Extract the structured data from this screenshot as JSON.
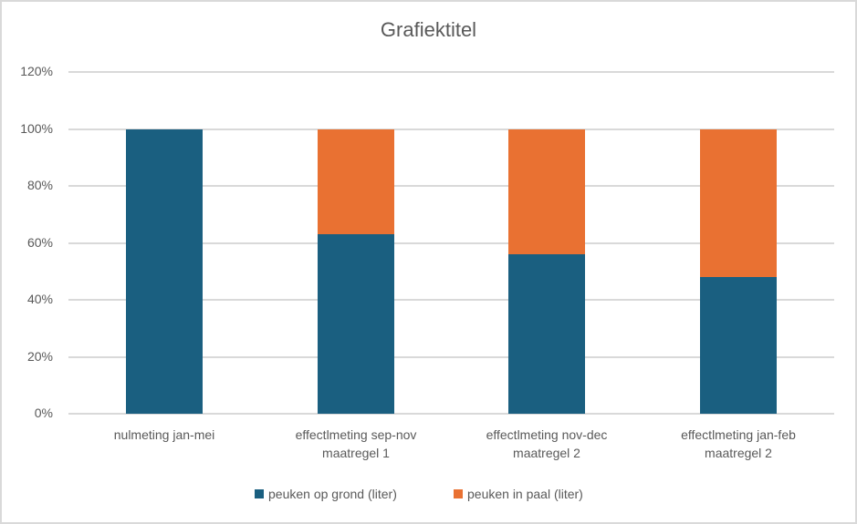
{
  "chart_data": {
    "type": "bar",
    "stacked": "percent",
    "title": "Grafiektitel",
    "xlabel": "",
    "ylabel": "",
    "ylim": [
      0,
      1.2
    ],
    "yticks": [
      "0%",
      "20%",
      "40%",
      "60%",
      "80%",
      "100%",
      "120%"
    ],
    "grid": true,
    "legend_position": "bottom",
    "categories": [
      "nulmeting jan-mei",
      "effectlmeting sep-nov maatregel 1",
      "effectlmeting nov-dec maatregel 2",
      "effectlmeting jan-feb maatregel 2"
    ],
    "category_lines": [
      [
        "nulmeting jan-mei",
        ""
      ],
      [
        "effectlmeting sep-nov",
        "maatregel 1"
      ],
      [
        "effectlmeting nov-dec",
        "maatregel 2"
      ],
      [
        "effectlmeting jan-feb",
        "maatregel 2"
      ]
    ],
    "series": [
      {
        "name": "peuken op grond (liter)",
        "color": "#1a5f80",
        "values": [
          1.0,
          0.63,
          0.56,
          0.48
        ]
      },
      {
        "name": "peuken in paal (liter)",
        "color": "#e97132",
        "values": [
          0.0,
          0.37,
          0.44,
          0.52
        ]
      }
    ]
  }
}
